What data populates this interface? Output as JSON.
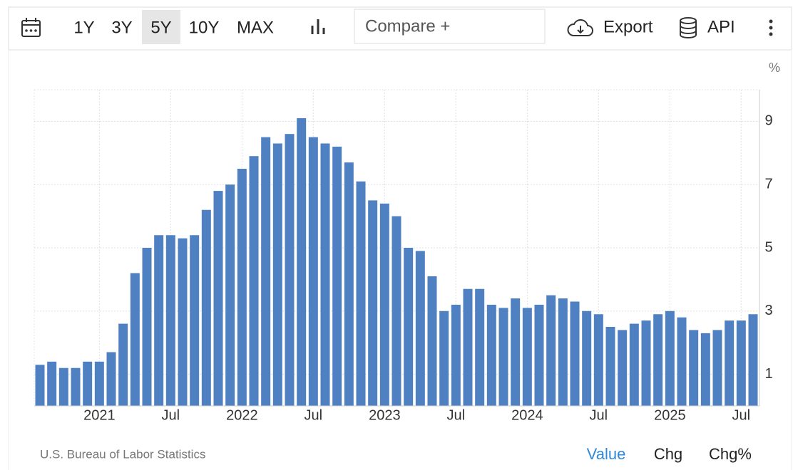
{
  "toolbar": {
    "ranges": [
      "1Y",
      "3Y",
      "5Y",
      "10Y",
      "MAX"
    ],
    "selected_range": "5Y",
    "compare": "Compare +",
    "export": "Export",
    "api": "API"
  },
  "chart_data": {
    "type": "bar",
    "y_label": "%",
    "color": "#4f81c2",
    "categories": [
      null,
      null,
      null,
      null,
      null,
      "2021",
      null,
      null,
      null,
      null,
      null,
      "Jul",
      null,
      null,
      null,
      null,
      null,
      "2022",
      null,
      null,
      null,
      null,
      null,
      "Jul",
      null,
      null,
      null,
      null,
      null,
      "2023",
      null,
      null,
      null,
      null,
      null,
      "Jul",
      null,
      null,
      null,
      null,
      null,
      "2024",
      null,
      null,
      null,
      null,
      null,
      "Jul",
      null,
      null,
      null,
      null,
      null,
      "2025",
      null,
      null,
      null,
      null,
      null,
      "Jul",
      null
    ],
    "values": [
      1.3,
      1.4,
      1.2,
      1.2,
      1.4,
      1.4,
      1.7,
      2.6,
      4.2,
      5.0,
      5.4,
      5.4,
      5.3,
      5.4,
      6.2,
      6.8,
      7.0,
      7.5,
      7.9,
      8.5,
      8.3,
      8.6,
      9.1,
      8.5,
      8.3,
      8.2,
      7.7,
      7.1,
      6.5,
      6.4,
      6.0,
      5.0,
      4.9,
      4.1,
      3.0,
      3.2,
      3.7,
      3.7,
      3.2,
      3.1,
      3.4,
      3.1,
      3.2,
      3.5,
      3.4,
      3.3,
      3.0,
      2.9,
      2.5,
      2.4,
      2.6,
      2.7,
      2.9,
      3.0,
      2.8,
      2.4,
      2.3,
      2.4,
      2.7,
      2.7,
      2.9
    ],
    "ylim": [
      0,
      10
    ],
    "yticks": [
      1,
      3,
      5,
      7,
      9
    ],
    "grid": true
  },
  "footer": {
    "source": "U.S. Bureau of Labor Statistics",
    "views": [
      "Value",
      "Chg",
      "Chg%"
    ],
    "selected_view": "Value"
  }
}
